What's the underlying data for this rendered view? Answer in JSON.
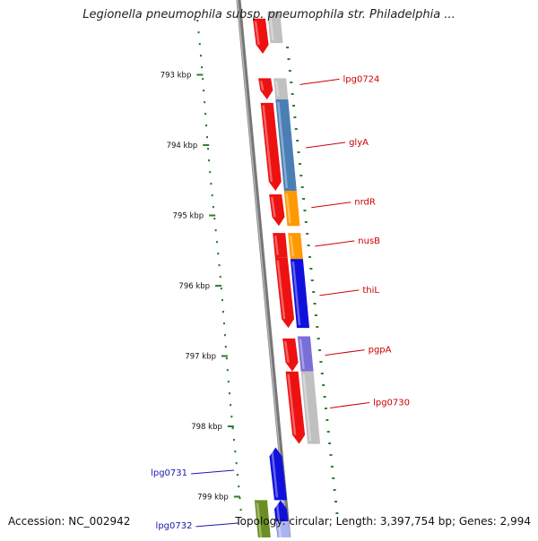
{
  "title": "Legionella pneumophila subsp. pneumophila str. Philadelphia ...",
  "footer": {
    "accession": "Accession: NC_002942",
    "summary": "Topology: circular; Length: 3,397,754 bp; Genes: 2,994"
  },
  "colors": {
    "backbone": "#808080",
    "tick": "#2e7d32",
    "label_forward": "#cc0000",
    "label_reverse": "#1a1aaa",
    "red": "#ee1111",
    "steel": "#4a7fb5",
    "orange": "#ff9900",
    "blue": "#1010dd",
    "lavender": "#7a6fd6",
    "gray": "#c0c0c0",
    "olive": "#6b8e23",
    "pale": "#aab4f0"
  },
  "diagram": {
    "ruler": [
      {
        "label": "793 kbp",
        "kbp": 793
      },
      {
        "label": "794 kbp",
        "kbp": 794
      },
      {
        "label": "795 kbp",
        "kbp": 795
      },
      {
        "label": "796 kbp",
        "kbp": 796
      },
      {
        "label": "797 kbp",
        "kbp": 797
      },
      {
        "label": "798 kbp",
        "kbp": 798
      },
      {
        "label": "799 kbp",
        "kbp": 799
      }
    ],
    "features": [
      {
        "ring": 0,
        "start": 792.2,
        "end": 792.7,
        "color": "red",
        "arrow": "end"
      },
      {
        "ring": 0,
        "start": 793.05,
        "end": 793.35,
        "color": "red",
        "arrow": "end"
      },
      {
        "ring": 0,
        "start": 793.4,
        "end": 794.65,
        "color": "red",
        "arrow": "end"
      },
      {
        "ring": 0,
        "start": 794.7,
        "end": 795.15,
        "color": "red",
        "arrow": "end"
      },
      {
        "ring": 0,
        "start": 795.25,
        "end": 795.6,
        "color": "red",
        "arrow": "none"
      },
      {
        "ring": 0,
        "start": 795.6,
        "end": 796.6,
        "color": "red",
        "arrow": "end"
      },
      {
        "ring": 0,
        "start": 796.75,
        "end": 797.22,
        "color": "red",
        "arrow": "end"
      },
      {
        "ring": 0,
        "start": 797.22,
        "end": 798.25,
        "color": "red",
        "arrow": "end"
      },
      {
        "ring": 1,
        "start": 792.1,
        "end": 792.55,
        "color": "gray",
        "arrow": "none"
      },
      {
        "ring": 1,
        "start": 793.05,
        "end": 793.35,
        "color": "gray",
        "arrow": "none"
      },
      {
        "ring": 1,
        "start": 793.35,
        "end": 794.65,
        "color": "steel",
        "arrow": "none"
      },
      {
        "ring": 1,
        "start": 794.65,
        "end": 795.15,
        "color": "orange",
        "arrow": "none"
      },
      {
        "ring": 1,
        "start": 795.25,
        "end": 795.62,
        "color": "orange",
        "arrow": "none"
      },
      {
        "ring": 1,
        "start": 795.62,
        "end": 796.6,
        "color": "blue",
        "arrow": "none"
      },
      {
        "ring": 1,
        "start": 796.72,
        "end": 797.22,
        "color": "lavender",
        "arrow": "none"
      },
      {
        "ring": 1,
        "start": 797.22,
        "end": 798.25,
        "color": "gray",
        "arrow": "none"
      },
      {
        "ring": 0,
        "start": 798.3,
        "end": 799.05,
        "color": "blue",
        "arrow": "start",
        "side": "in"
      },
      {
        "ring": 1,
        "start": 799.05,
        "end": 799.7,
        "color": "olive",
        "arrow": "none",
        "side": "in"
      },
      {
        "ring": 0,
        "start": 799.05,
        "end": 799.7,
        "color": "blue",
        "arrow": "start",
        "side": "in"
      },
      {
        "ring": 0,
        "start": 799.35,
        "end": 799.7,
        "color": "pale",
        "arrow": "none",
        "side": "in"
      }
    ],
    "gene_labels": [
      {
        "text": "lpg0724",
        "kbp": 793.1,
        "side": "out"
      },
      {
        "text": "glyA",
        "kbp": 794.0,
        "side": "out"
      },
      {
        "text": "nrdR",
        "kbp": 794.85,
        "side": "out"
      },
      {
        "text": "nusB",
        "kbp": 795.4,
        "side": "out"
      },
      {
        "text": "thiL",
        "kbp": 796.1,
        "side": "out"
      },
      {
        "text": "pgpA",
        "kbp": 796.95,
        "side": "out"
      },
      {
        "text": "lpg0730",
        "kbp": 797.7,
        "side": "out"
      },
      {
        "text": "lpg0731",
        "kbp": 798.65,
        "side": "in"
      },
      {
        "text": "lpg0732",
        "kbp": 799.4,
        "side": "in"
      }
    ]
  }
}
